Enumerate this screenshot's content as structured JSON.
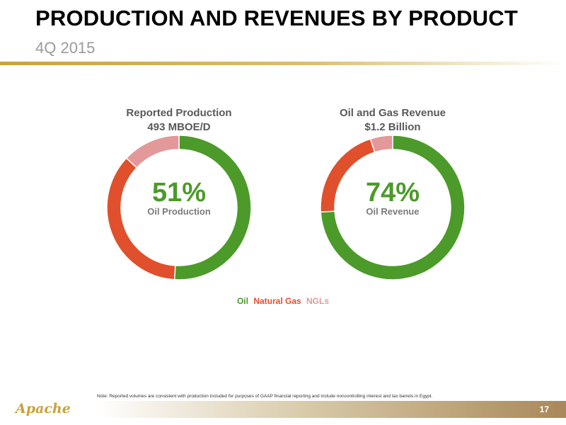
{
  "header": {
    "title": "PRODUCTION AND REVENUES BY PRODUCT",
    "subtitle": "4Q 2015"
  },
  "colors": {
    "oil": "#4c9a2a",
    "natural_gas": "#e0502c",
    "ngls": "#e3989a",
    "accent_gold": "#c9a23a"
  },
  "chart_data": [
    {
      "type": "pie",
      "title_line1": "Reported Production",
      "title_line2": "493 MBOE/D",
      "center_value": "51%",
      "center_label": "Oil Production",
      "categories": [
        "Oil",
        "Natural Gas",
        "NGLs"
      ],
      "values": [
        51,
        36,
        13
      ]
    },
    {
      "type": "pie",
      "title_line1": "Oil and Gas Revenue",
      "title_line2": "$1.2 Billion",
      "center_value": "74%",
      "center_label": "Oil Revenue",
      "categories": [
        "Oil",
        "Natural Gas",
        "NGLs"
      ],
      "values": [
        74,
        21,
        5
      ]
    }
  ],
  "legend": {
    "oil": "Oil",
    "natural_gas": "Natural Gas",
    "ngls": "NGLs"
  },
  "footer": {
    "note": "Note: Reported volumes are consistent with production included for purposes of GAAP financial reporting and include noncontrolling interest and tax barrels in Egypt.",
    "page_number": "17",
    "logo_text": "Apache"
  }
}
